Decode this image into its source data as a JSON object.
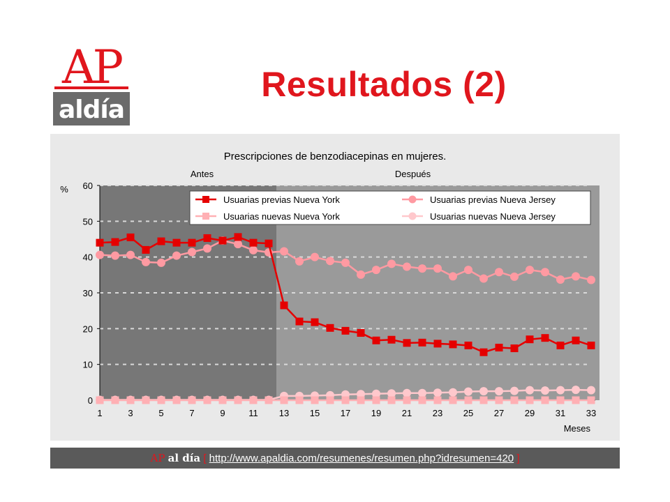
{
  "slide": {
    "title": "Resultados (2)",
    "logo": {
      "top_text": "AP",
      "bottom_text": "aldía"
    }
  },
  "footer": {
    "brand_ap": "AP",
    "brand_aldia": "al día",
    "bracket_open": "[",
    "link_text": "http://www.apaldia.com/resumenes/resumen.php?idresumen=420",
    "bracket_close": "]"
  },
  "colors": {
    "brand_red": "#e0161d",
    "series_ny_prev": "#e50000",
    "series_nj_prev": "#ff9aa2",
    "series_ny_new": "#ffb0b4",
    "series_nj_new": "#ffc8cc",
    "period_before": "#777777",
    "period_after": "#9a9a9a"
  },
  "chart_data": {
    "type": "line",
    "title": "Prescripciones de benzodiacepinas en mujeres.",
    "ylabel": "%",
    "xlabel": "Meses",
    "ylim": [
      0,
      60
    ],
    "yticks": [
      0,
      10,
      20,
      30,
      40,
      50,
      60
    ],
    "xlim": [
      1,
      33
    ],
    "xticks": [
      1,
      3,
      5,
      7,
      9,
      11,
      13,
      15,
      17,
      19,
      21,
      23,
      25,
      27,
      29,
      31,
      33
    ],
    "grid": true,
    "legend_position": "top-right",
    "periods": [
      {
        "label": "Antes",
        "from": 1,
        "to": 12
      },
      {
        "label": "Después",
        "from": 12,
        "to": 33
      }
    ],
    "x": [
      1,
      2,
      3,
      4,
      5,
      6,
      7,
      8,
      9,
      10,
      11,
      12,
      13,
      14,
      15,
      16,
      17,
      18,
      19,
      20,
      21,
      22,
      23,
      24,
      25,
      26,
      27,
      28,
      29,
      30,
      31,
      32,
      33
    ],
    "series": [
      {
        "name": "Usuarias previas Nueva York",
        "marker": "square",
        "values": [
          44.0,
          44.2,
          45.5,
          42.0,
          44.4,
          44.0,
          44.0,
          45.3,
          44.6,
          45.6,
          44.0,
          43.8,
          26.5,
          22.0,
          21.8,
          20.2,
          19.4,
          18.8,
          16.7,
          16.9,
          16.0,
          16.1,
          15.8,
          15.6,
          15.3,
          13.4,
          14.7,
          14.5,
          17.0,
          17.4,
          15.3,
          16.7,
          15.3
        ]
      },
      {
        "name": "Usuarias previas Nueva Jersey",
        "marker": "circle",
        "values": [
          40.6,
          40.4,
          40.6,
          38.6,
          38.4,
          40.4,
          41.4,
          42.4,
          44.6,
          43.6,
          41.9,
          41.3,
          41.6,
          38.8,
          40.0,
          38.9,
          38.4,
          35.1,
          36.4,
          38.1,
          37.3,
          36.8,
          36.8,
          34.6,
          36.4,
          34.0,
          35.8,
          34.5,
          36.4,
          35.8,
          33.7,
          34.6,
          33.6
        ]
      },
      {
        "name": "Usuarias nuevas Nueva York",
        "marker": "square",
        "values": [
          0,
          0,
          0,
          0,
          0,
          0,
          0,
          0,
          0,
          0,
          0,
          0,
          0,
          0,
          0,
          0,
          0,
          0,
          0,
          0,
          0,
          0,
          0,
          0,
          0,
          0,
          0,
          0,
          0,
          0,
          0,
          0,
          0
        ]
      },
      {
        "name": "Usuarias nuevas Nueva Jersey",
        "marker": "circle",
        "values": [
          0.1,
          0.1,
          0.1,
          0.1,
          0.1,
          0.1,
          0.1,
          0.1,
          0.1,
          0.1,
          0.1,
          0.1,
          1.2,
          1.2,
          1.3,
          1.4,
          1.6,
          1.7,
          1.8,
          1.9,
          2.0,
          2.0,
          2.1,
          2.2,
          2.4,
          2.5,
          2.5,
          2.6,
          2.8,
          2.7,
          2.8,
          2.9,
          2.8
        ]
      }
    ]
  }
}
